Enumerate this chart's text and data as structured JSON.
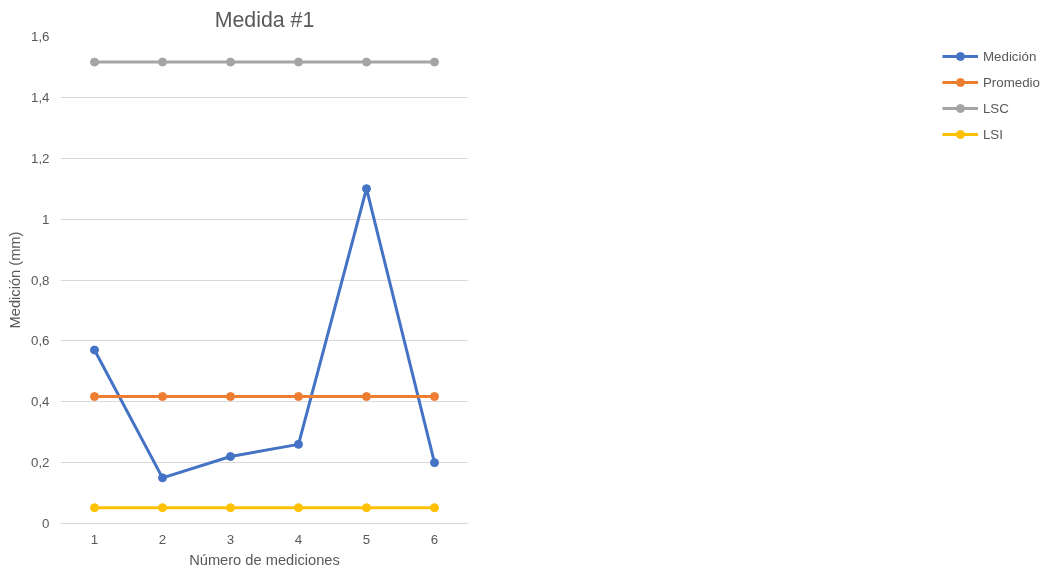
{
  "chart_data": {
    "type": "line",
    "title": "Medida #1",
    "xlabel": "Número de mediciones",
    "ylabel": "Medición (mm)",
    "categories": [
      "1",
      "2",
      "3",
      "4",
      "5",
      "6"
    ],
    "series": [
      {
        "name": "Medición",
        "color": "#4472c4",
        "values": [
          0.57,
          0.15,
          0.22,
          0.26,
          1.1,
          0.2
        ]
      },
      {
        "name": "Promedio",
        "color": "#ed7d31",
        "values": [
          0.417,
          0.417,
          0.417,
          0.417,
          0.417,
          0.417
        ]
      },
      {
        "name": "LSC",
        "color": "#a5a5a5",
        "values": [
          1.516,
          1.516,
          1.516,
          1.516,
          1.516,
          1.516
        ]
      },
      {
        "name": "LSI",
        "color": "#ffc000",
        "values": [
          0.052,
          0.052,
          0.052,
          0.052,
          0.052,
          0.052
        ]
      }
    ],
    "ylim": [
      0,
      1.6
    ],
    "yticks": [
      {
        "value": 0,
        "label": "0"
      },
      {
        "value": 0.2,
        "label": "0,2"
      },
      {
        "value": 0.4,
        "label": "0,4"
      },
      {
        "value": 0.6,
        "label": "0,6"
      },
      {
        "value": 0.8,
        "label": "0,8"
      },
      {
        "value": 1,
        "label": "1"
      },
      {
        "value": 1.2,
        "label": "1,2"
      },
      {
        "value": 1.4,
        "label": "1,4"
      },
      {
        "value": 1.6,
        "label": "1,6"
      }
    ],
    "grid": "y",
    "legend": "right",
    "marker": "circle",
    "line_style": "solid"
  }
}
